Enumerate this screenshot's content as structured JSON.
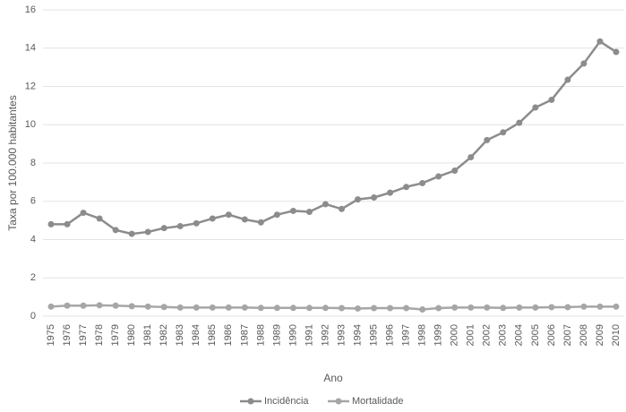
{
  "chart_data": {
    "type": "line",
    "y_label": "Taxa por 100.000 habitantes",
    "x_label": "Ano",
    "categories": [
      "1975",
      "1976",
      "1977",
      "1978",
      "1979",
      "1980",
      "1981",
      "1982",
      "1983",
      "1984",
      "1985",
      "1986",
      "1987",
      "1988",
      "1989",
      "1990",
      "1991",
      "1992",
      "1993",
      "1994",
      "1995",
      "1996",
      "1997",
      "1998",
      "1999",
      "2000",
      "2001",
      "2002",
      "2003",
      "2004",
      "2005",
      "2006",
      "2007",
      "2008",
      "2009",
      "2010"
    ],
    "series": [
      {
        "name": "Incidência",
        "color": "#8c8c8c",
        "values": [
          4.8,
          4.8,
          5.4,
          5.1,
          4.5,
          4.3,
          4.4,
          4.6,
          4.7,
          4.85,
          5.1,
          5.3,
          5.05,
          4.9,
          5.3,
          5.5,
          5.45,
          5.85,
          5.6,
          6.1,
          6.2,
          6.45,
          6.75,
          6.95,
          7.3,
          7.6,
          8.3,
          9.2,
          9.6,
          10.1,
          10.9,
          11.3,
          12.35,
          13.2,
          14.35,
          13.8
        ]
      },
      {
        "name": "Mortalidade",
        "color": "#a6a6a6",
        "values": [
          0.5,
          0.55,
          0.55,
          0.57,
          0.55,
          0.52,
          0.5,
          0.48,
          0.45,
          0.45,
          0.45,
          0.45,
          0.45,
          0.43,
          0.43,
          0.43,
          0.43,
          0.43,
          0.42,
          0.4,
          0.42,
          0.42,
          0.42,
          0.35,
          0.42,
          0.45,
          0.45,
          0.45,
          0.43,
          0.45,
          0.45,
          0.47,
          0.47,
          0.5,
          0.5,
          0.5
        ]
      }
    ],
    "ylim": [
      0,
      16
    ],
    "yticks": [
      0,
      2,
      4,
      6,
      8,
      10,
      12,
      14,
      16
    ],
    "grid": true,
    "legend": "bottom"
  }
}
